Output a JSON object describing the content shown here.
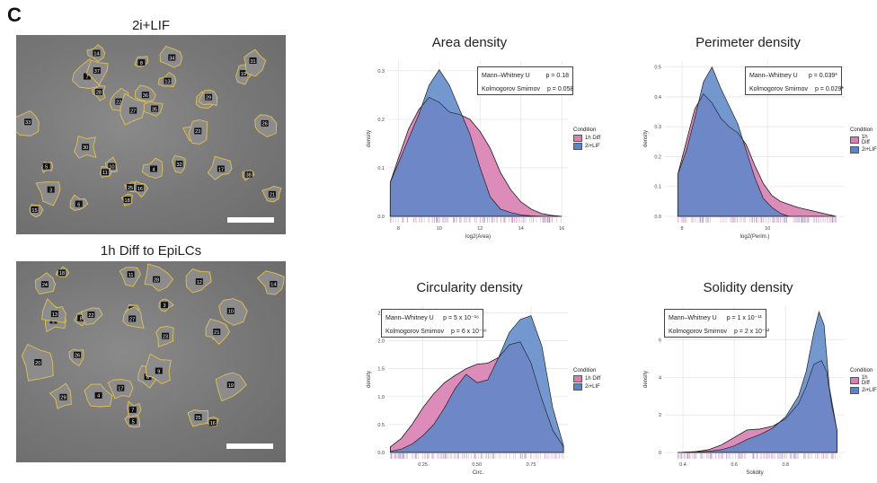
{
  "panel_label": "C",
  "micrographs": [
    {
      "title": "2i+LIF",
      "cell_labels": [
        "3",
        "6",
        "7",
        "8",
        "4",
        "5",
        "10",
        "12",
        "9",
        "11",
        "13",
        "14",
        "15",
        "16",
        "17",
        "18",
        "19",
        "20",
        "21",
        "22",
        "23",
        "24",
        "25",
        "26",
        "27",
        "28",
        "29",
        "30",
        "31",
        "32",
        "33",
        "34",
        "35",
        "36",
        "37",
        "38"
      ]
    },
    {
      "title": "1h Diff to EpiLCs",
      "cell_labels": [
        "1",
        "2",
        "3",
        "4",
        "5",
        "6",
        "7",
        "8",
        "9",
        "10",
        "11",
        "12",
        "13",
        "14",
        "15",
        "16",
        "17",
        "18",
        "19",
        "20",
        "21",
        "22",
        "23",
        "24",
        "25",
        "26",
        "27",
        "28",
        "29"
      ]
    }
  ],
  "colors": {
    "diff": "#d97fb3",
    "lif": "#5a86c8",
    "overlap": "#6674b9",
    "rug": "#9b8fc8",
    "grid": "#e6e6e6",
    "outline": "#e2c04e"
  },
  "legend": {
    "title": "Condition",
    "items": [
      "1h Diff",
      "2i+LIF"
    ]
  },
  "chart_data": [
    {
      "type": "area",
      "title": "Area density",
      "xlabel": "log2(Area)",
      "ylabel": "density",
      "xlim": [
        7.5,
        16.3
      ],
      "ylim": [
        0,
        0.32
      ],
      "xticks": [
        8,
        10,
        12,
        14,
        16
      ],
      "yticks": [
        0.0,
        0.1,
        0.2,
        0.3
      ],
      "ytick_labels": [
        "0.0",
        "0.1",
        "0.2",
        "0.3"
      ],
      "stats": [
        {
          "test": "Mann–Whitney U",
          "p": "p = 0.18"
        },
        {
          "test": "Kolmogorov Smirnov",
          "p": "p = 0.058"
        }
      ],
      "series": [
        {
          "name": "1h Diff",
          "x": [
            7.6,
            8.0,
            8.5,
            9.0,
            9.5,
            10.0,
            10.5,
            11.0,
            11.5,
            12.0,
            12.5,
            13.0,
            13.5,
            14.0,
            14.5,
            15.0,
            15.5,
            16.0
          ],
          "y": [
            0.07,
            0.12,
            0.18,
            0.22,
            0.245,
            0.235,
            0.215,
            0.21,
            0.2,
            0.175,
            0.14,
            0.09,
            0.055,
            0.03,
            0.015,
            0.006,
            0.002,
            0.0
          ]
        },
        {
          "name": "2i+LIF",
          "x": [
            7.6,
            8.0,
            8.5,
            9.0,
            9.5,
            10.0,
            10.5,
            11.0,
            11.5,
            12.0,
            12.5,
            13.0,
            13.5,
            14.0,
            14.5,
            15.0
          ],
          "y": [
            0.07,
            0.11,
            0.16,
            0.21,
            0.27,
            0.302,
            0.27,
            0.22,
            0.17,
            0.1,
            0.04,
            0.015,
            0.008,
            0.003,
            0.001,
            0.0
          ]
        }
      ]
    },
    {
      "type": "area",
      "title": "Perimeter density",
      "xlabel": "log2(Perim.)",
      "ylabel": "density",
      "xlim": [
        7.6,
        11.8
      ],
      "ylim": [
        0,
        0.52
      ],
      "xticks": [
        8,
        10
      ],
      "yticks": [
        0.0,
        0.1,
        0.2,
        0.3,
        0.4,
        0.5
      ],
      "ytick_labels": [
        "0.0",
        "0.1",
        "0.2",
        "0.3",
        "0.4",
        "0.5"
      ],
      "stats": [
        {
          "test": "Mann–Whitney U",
          "p": "p = 0.039*"
        },
        {
          "test": "Kolmogorov Smirnov",
          "p": "p = 0.029*"
        }
      ],
      "series": [
        {
          "name": "1h Diff",
          "x": [
            7.9,
            8.1,
            8.3,
            8.5,
            8.7,
            8.9,
            9.1,
            9.3,
            9.5,
            9.7,
            9.9,
            10.1,
            10.3,
            10.5,
            10.7,
            11.0,
            11.3,
            11.6
          ],
          "y": [
            0.14,
            0.25,
            0.36,
            0.41,
            0.38,
            0.33,
            0.3,
            0.28,
            0.24,
            0.17,
            0.11,
            0.07,
            0.05,
            0.04,
            0.03,
            0.02,
            0.01,
            0.0
          ]
        },
        {
          "name": "2i+LIF",
          "x": [
            7.9,
            8.1,
            8.3,
            8.5,
            8.7,
            8.9,
            9.1,
            9.3,
            9.5,
            9.7,
            9.9,
            10.1,
            10.3,
            10.5
          ],
          "y": [
            0.14,
            0.22,
            0.33,
            0.45,
            0.5,
            0.43,
            0.37,
            0.31,
            0.22,
            0.13,
            0.06,
            0.03,
            0.01,
            0.0
          ]
        }
      ]
    },
    {
      "type": "area",
      "title": "Circularity density",
      "xlabel": "Circ.",
      "ylabel": "density",
      "xlim": [
        0.09,
        0.92
      ],
      "ylim": [
        0,
        2.62
      ],
      "xticks": [
        0.25,
        0.5,
        0.75
      ],
      "xtick_labels": [
        "0.25",
        "0.50",
        "0.75"
      ],
      "yticks": [
        0.0,
        0.5,
        1.0,
        1.5,
        2.0,
        2.5
      ],
      "ytick_labels": [
        "0.0",
        "0.5",
        "1.0",
        "1.5",
        "2.0",
        "2.5"
      ],
      "stats": [
        {
          "test": "Mann–Whitney U",
          "p": "p = 5 x 10⁻¹⁶"
        },
        {
          "test": "Kolmogorov Smirnov",
          "p": "p = 6 x 10⁻¹⁶"
        }
      ],
      "series": [
        {
          "name": "1h Diff",
          "x": [
            0.1,
            0.15,
            0.2,
            0.25,
            0.3,
            0.35,
            0.4,
            0.45,
            0.5,
            0.55,
            0.6,
            0.65,
            0.7,
            0.75,
            0.8,
            0.85,
            0.9
          ],
          "y": [
            0.1,
            0.25,
            0.5,
            0.8,
            1.05,
            1.25,
            1.38,
            1.5,
            1.58,
            1.6,
            1.7,
            1.93,
            1.98,
            1.6,
            0.95,
            0.4,
            0.1
          ]
        },
        {
          "name": "2i+LIF",
          "x": [
            0.1,
            0.15,
            0.2,
            0.25,
            0.3,
            0.35,
            0.4,
            0.45,
            0.5,
            0.55,
            0.6,
            0.65,
            0.7,
            0.75,
            0.8,
            0.85,
            0.9
          ],
          "y": [
            0.02,
            0.06,
            0.15,
            0.3,
            0.5,
            0.8,
            1.15,
            1.4,
            1.25,
            1.3,
            1.7,
            2.15,
            2.38,
            2.45,
            1.9,
            0.8,
            0.12
          ]
        }
      ]
    },
    {
      "type": "area",
      "title": "Solidity density",
      "xlabel": "Solidity",
      "ylabel": "density",
      "xlim": [
        0.33,
        1.03
      ],
      "ylim": [
        0,
        7.8
      ],
      "xticks": [
        0.4,
        0.6,
        0.8
      ],
      "xtick_labels": [
        "0.4",
        "0.6",
        "0.8"
      ],
      "yticks": [
        0,
        2,
        4,
        6
      ],
      "ytick_labels": [
        "0",
        "2",
        "4",
        "6"
      ],
      "stats": [
        {
          "test": "Mann–Whitney U",
          "p": "p = 1 x 10⁻¹¹"
        },
        {
          "test": "Kolmogorov Smirnov",
          "p": "p = 2 x 10⁻¹²"
        }
      ],
      "series": [
        {
          "name": "1h Diff",
          "x": [
            0.38,
            0.45,
            0.5,
            0.55,
            0.6,
            0.65,
            0.7,
            0.75,
            0.8,
            0.85,
            0.88,
            0.91,
            0.94,
            0.96,
            0.98,
            1.0
          ],
          "y": [
            0.0,
            0.05,
            0.15,
            0.4,
            0.8,
            1.2,
            1.25,
            1.4,
            1.8,
            2.6,
            3.5,
            4.7,
            4.9,
            4.3,
            2.5,
            1.2
          ]
        },
        {
          "name": "2i+LIF",
          "x": [
            0.38,
            0.45,
            0.5,
            0.55,
            0.6,
            0.65,
            0.7,
            0.75,
            0.8,
            0.85,
            0.88,
            0.91,
            0.93,
            0.95,
            0.97,
            1.0
          ],
          "y": [
            0.0,
            0.02,
            0.06,
            0.15,
            0.35,
            0.7,
            0.95,
            1.3,
            1.9,
            3.0,
            4.3,
            6.4,
            7.5,
            6.8,
            3.5,
            1.2
          ]
        }
      ]
    }
  ]
}
